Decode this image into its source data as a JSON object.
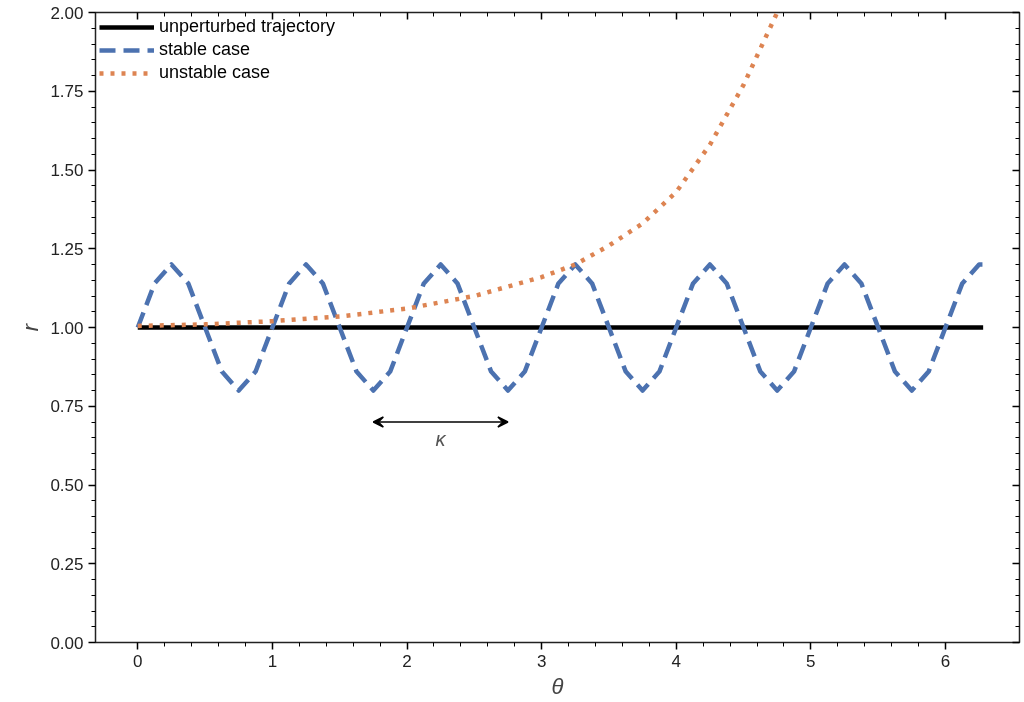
{
  "chart_data": {
    "type": "line",
    "xlabel": "θ",
    "ylabel": "r",
    "xlim": [
      -0.314,
      6.55
    ],
    "ylim": [
      0,
      2
    ],
    "xticks": [
      0,
      1,
      2,
      3,
      4,
      5,
      6
    ],
    "yticks": [
      {
        "value": 0,
        "label": "0.00"
      },
      {
        "value": 0.25,
        "label": "0.25"
      },
      {
        "value": 0.5,
        "label": "0.50"
      },
      {
        "value": 0.75,
        "label": "0.75"
      },
      {
        "value": 1,
        "label": "1.00"
      },
      {
        "value": 1.25,
        "label": "1.25"
      },
      {
        "value": 1.5,
        "label": "1.50"
      },
      {
        "value": 1.75,
        "label": "1.75"
      },
      {
        "value": 2,
        "label": "2.00"
      }
    ],
    "grid": false,
    "legend": "top left",
    "marker": "none",
    "annotations": [
      "κ"
    ],
    "series": [
      {
        "name": "unperturbed trajectory",
        "color": "#000000",
        "line_style": "solid",
        "x": [
          0,
          6.28
        ],
        "values": [
          1,
          1
        ]
      },
      {
        "name": "stable case",
        "color": "#4c72b0",
        "line_style": "dashed",
        "x": [
          0,
          0.125,
          0.25,
          0.375,
          0.5,
          0.625,
          0.75,
          0.875,
          1,
          1.125,
          1.25,
          1.375,
          1.5,
          1.625,
          1.75,
          1.875,
          2,
          2.125,
          2.25,
          2.375,
          2.5,
          2.625,
          2.75,
          2.875,
          3,
          3.125,
          3.25,
          3.375,
          3.5,
          3.625,
          3.75,
          3.875,
          4,
          4.125,
          4.25,
          4.375,
          4.5,
          4.625,
          4.75,
          4.875,
          5,
          5.125,
          5.25,
          5.375,
          5.5,
          5.625,
          5.75,
          5.875,
          6,
          6.125,
          6.25,
          6.28
        ],
        "values": [
          1,
          1.14,
          1.2,
          1.14,
          1,
          0.86,
          0.8,
          0.86,
          1,
          1.14,
          1.2,
          1.14,
          1,
          0.86,
          0.8,
          0.86,
          1,
          1.14,
          1.2,
          1.14,
          1,
          0.86,
          0.8,
          0.86,
          1,
          1.14,
          1.2,
          1.14,
          1,
          0.86,
          0.8,
          0.86,
          1,
          1.14,
          1.2,
          1.14,
          1,
          0.86,
          0.8,
          0.86,
          1,
          1.14,
          1.2,
          1.14,
          1,
          0.86,
          0.8,
          0.86,
          1,
          1.14,
          1.2,
          1.2
        ]
      },
      {
        "name": "unstable case",
        "color": "#dd8452",
        "line_style": "dotted",
        "x": [
          0,
          0.5,
          1,
          1.5,
          2,
          2.5,
          3,
          3.25,
          3.5,
          3.75,
          4,
          4.25,
          4.5,
          4.75
        ],
        "values": [
          1.005,
          1.01,
          1.02,
          1.035,
          1.06,
          1.1,
          1.16,
          1.2,
          1.26,
          1.33,
          1.43,
          1.58,
          1.77,
          2.0
        ]
      }
    ]
  }
}
